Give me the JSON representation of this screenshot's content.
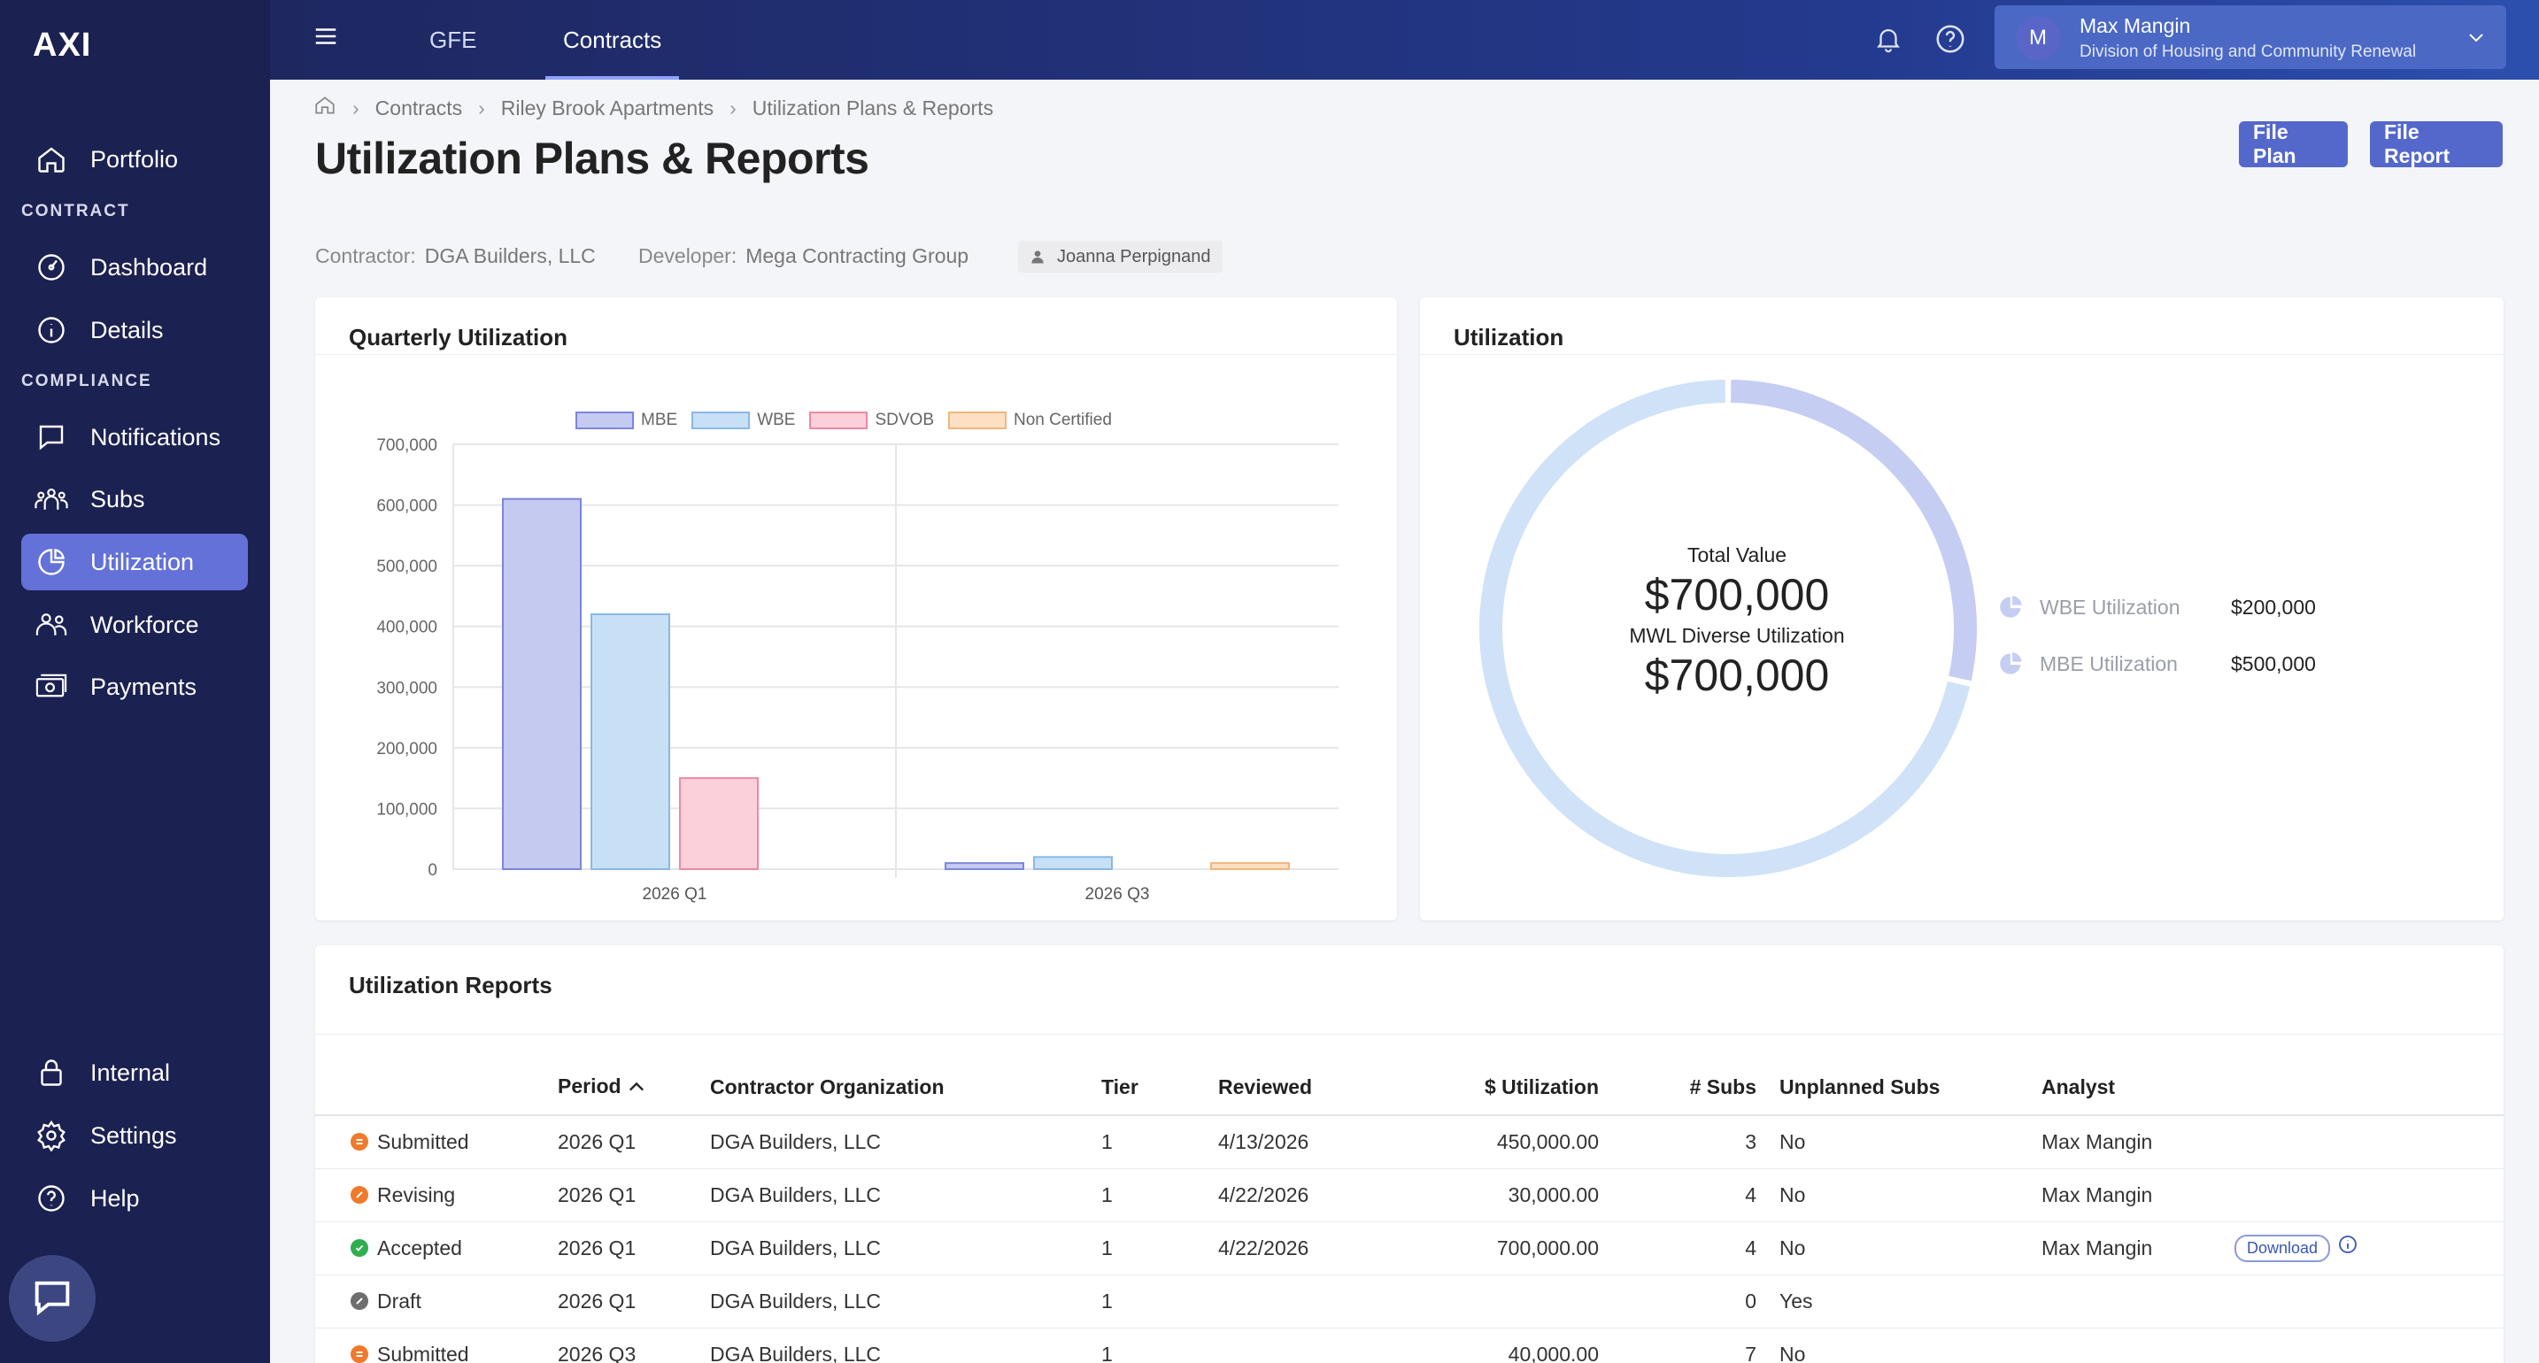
{
  "app": {
    "logo": "AXI"
  },
  "sidebar": {
    "items": [
      {
        "label": "Portfolio",
        "icon": "home-icon"
      },
      {
        "label": "Dashboard",
        "icon": "dashboard-icon"
      },
      {
        "label": "Details",
        "icon": "info-icon"
      },
      {
        "label": "Notifications",
        "icon": "message-icon"
      },
      {
        "label": "Subs",
        "icon": "group-icon"
      },
      {
        "label": "Utilization",
        "icon": "pie-chart-icon",
        "active": true
      },
      {
        "label": "Workforce",
        "icon": "people-icon"
      },
      {
        "label": "Payments",
        "icon": "cash-icon"
      },
      {
        "label": "Internal",
        "icon": "lock-icon"
      },
      {
        "label": "Settings",
        "icon": "gear-icon"
      },
      {
        "label": "Help",
        "icon": "help-icon"
      }
    ],
    "sections": {
      "contract": "CONTRACT",
      "compliance": "COMPLIANCE"
    }
  },
  "topbar": {
    "tabs": [
      {
        "label": "GFE"
      },
      {
        "label": "Contracts",
        "active": true
      }
    ],
    "user": {
      "initial": "M",
      "name": "Max Mangin",
      "org": "Division of Housing and Community Renewal"
    }
  },
  "breadcrumb": [
    "Contracts",
    "Riley Brook Apartments",
    "Utilization Plans & Reports"
  ],
  "page": {
    "title": "Utilization Plans & Reports",
    "file_plan": "File Plan",
    "file_report": "File Report",
    "contractor_label": "Contractor:",
    "contractor": "DGA Builders, LLC",
    "developer_label": "Developer:",
    "developer": "Mega Contracting Group",
    "person": "Joanna Perpignand"
  },
  "quarterly": {
    "title": "Quarterly Utilization"
  },
  "chart_data": {
    "type": "bar",
    "categories": [
      "2026 Q1",
      "2026 Q3"
    ],
    "series": [
      {
        "name": "MBE",
        "values": [
          610000,
          10000
        ],
        "color": "#c5caf0",
        "stroke": "#7b86dc"
      },
      {
        "name": "WBE",
        "values": [
          420000,
          20000
        ],
        "color": "#c8e0f6",
        "stroke": "#8ab8e6"
      },
      {
        "name": "SDVOB",
        "values": [
          150000,
          0
        ],
        "color": "#fbd0da",
        "stroke": "#ec8aa0"
      },
      {
        "name": "Non Certified",
        "values": [
          0,
          10000
        ],
        "color": "#fde0c4",
        "stroke": "#f2b57c"
      }
    ],
    "ylim": [
      0,
      700000
    ],
    "yticks": [
      "0",
      "100,000",
      "200,000",
      "300,000",
      "400,000",
      "500,000",
      "600,000",
      "700,000"
    ],
    "legend": "top"
  },
  "utilization": {
    "title": "Utilization",
    "total_label": "Total Value",
    "total_value": "$700,000",
    "mwl_label": "MWL Diverse Utilization",
    "mwl_value": "$700,000",
    "legend": [
      {
        "label": "WBE Utilization",
        "value": "$200,000"
      },
      {
        "label": "MBE Utilization",
        "value": "$500,000"
      }
    ],
    "donut": {
      "wbe_fraction": 0.2857,
      "mbe_fraction": 0.7143,
      "wbe_color": "#c5cdf2",
      "mbe_color": "#cfe2f7"
    }
  },
  "reports": {
    "title": "Utilization Reports",
    "columns": [
      "Period",
      "Contractor Organization",
      "Tier",
      "Reviewed",
      "$ Utilization",
      "# Subs",
      "Unplanned Subs",
      "Analyst"
    ],
    "download_label": "Download",
    "rows": [
      {
        "status": "Submitted",
        "status_color": "#f07a2c",
        "period": "2026 Q1",
        "org": "DGA Builders, LLC",
        "tier": "1",
        "reviewed": "4/13/2026",
        "util": "450,000.00",
        "subs": "3",
        "unplanned": "No",
        "analyst": "Max Mangin"
      },
      {
        "status": "Revising",
        "status_color": "#f07a2c",
        "period": "2026 Q1",
        "org": "DGA Builders, LLC",
        "tier": "1",
        "reviewed": "4/22/2026",
        "util": "30,000.00",
        "subs": "4",
        "unplanned": "No",
        "analyst": "Max Mangin"
      },
      {
        "status": "Accepted",
        "status_color": "#2fae4e",
        "period": "2026 Q1",
        "org": "DGA Builders, LLC",
        "tier": "1",
        "reviewed": "4/22/2026",
        "util": "700,000.00",
        "subs": "4",
        "unplanned": "No",
        "analyst": "Max Mangin"
      },
      {
        "status": "Draft",
        "status_color": "#6e6e6e",
        "period": "2026 Q1",
        "org": "DGA Builders, LLC",
        "tier": "1",
        "reviewed": "",
        "util": "",
        "subs": "0",
        "unplanned": "Yes",
        "analyst": ""
      },
      {
        "status": "Submitted",
        "status_color": "#f07a2c",
        "period": "2026 Q3",
        "org": "DGA Builders, LLC",
        "tier": "1",
        "reviewed": "",
        "util": "40,000.00",
        "subs": "7",
        "unplanned": "No",
        "analyst": ""
      }
    ]
  }
}
